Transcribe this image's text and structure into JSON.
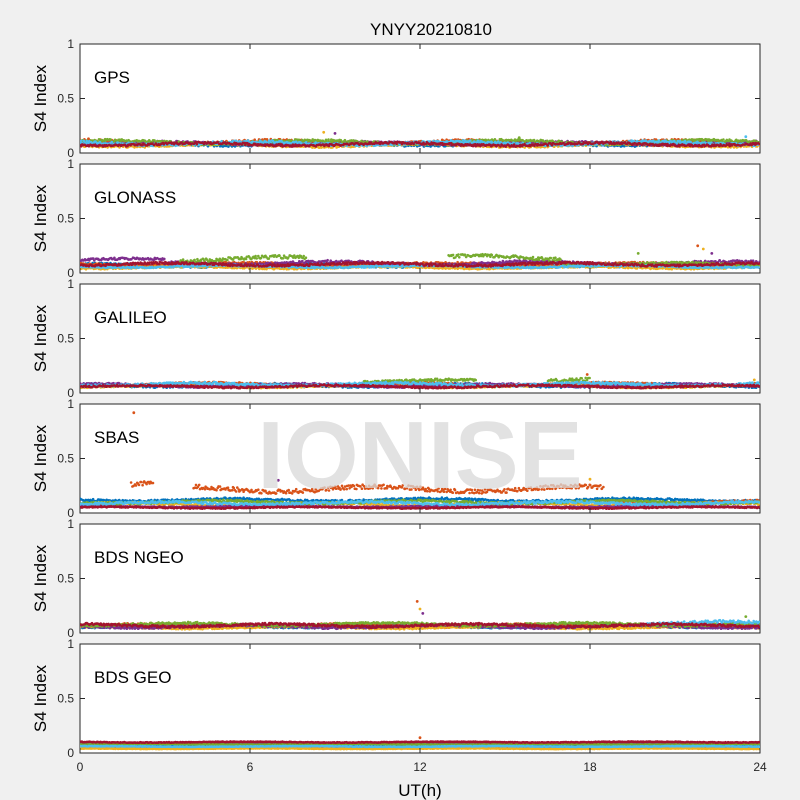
{
  "watermark": "IONISE",
  "colors": {
    "c1": "#0072BD",
    "c2": "#D95319",
    "c3": "#EDB120",
    "c4": "#7E2F8E",
    "c5": "#77AC30",
    "c6": "#4DBEEE",
    "c7": "#A2142F"
  },
  "chart_data": {
    "type": "scatter",
    "title": "YNYY20210810",
    "xlabel": "UT(h)",
    "ylabel": "S4 Index",
    "xlim": [
      0,
      24
    ],
    "ylim": [
      0,
      1
    ],
    "xticks": [
      0,
      6,
      12,
      18,
      24
    ],
    "yticks": [
      0,
      0.5,
      1
    ],
    "ytick_labels": [
      "0",
      "0.5",
      "1"
    ],
    "grid": false,
    "panels": [
      {
        "label": "GPS",
        "series": [
          {
            "color": "c1",
            "segments": [
              [
                0,
                24,
                0.08,
                0.02
              ]
            ]
          },
          {
            "color": "c2",
            "segments": [
              [
                0,
                24,
                0.1,
                0.025
              ]
            ]
          },
          {
            "color": "c3",
            "segments": [
              [
                0,
                24,
                0.07,
                0.02
              ]
            ]
          },
          {
            "color": "c4",
            "segments": [
              [
                0,
                24,
                0.09,
                0.02
              ]
            ]
          },
          {
            "color": "c5",
            "segments": [
              [
                0,
                24,
                0.1,
                0.025
              ]
            ]
          },
          {
            "color": "c6",
            "segments": [
              [
                0,
                24,
                0.09,
                0.025
              ]
            ]
          },
          {
            "color": "c7",
            "segments": [
              [
                0,
                24,
                0.08,
                0.02
              ]
            ]
          }
        ],
        "spikes": [
          [
            0.3,
            0.13
          ],
          [
            8.6,
            0.19
          ],
          [
            9.0,
            0.18
          ],
          [
            15.5,
            0.14
          ],
          [
            23.5,
            0.15
          ]
        ]
      },
      {
        "label": "GLONASS",
        "series": [
          {
            "color": "c1",
            "segments": [
              [
                0,
                24,
                0.07,
                0.02
              ]
            ]
          },
          {
            "color": "c2",
            "segments": [
              [
                0,
                24,
                0.08,
                0.02
              ]
            ]
          },
          {
            "color": "c3",
            "segments": [
              [
                0,
                24,
                0.05,
                0.015
              ]
            ]
          },
          {
            "color": "c4",
            "segments": [
              [
                0,
                3,
                0.12,
                0.02
              ],
              [
                3,
                24,
                0.09,
                0.025
              ]
            ]
          },
          {
            "color": "c5",
            "segments": [
              [
                3.5,
                8,
                0.13,
                0.03
              ],
              [
                13,
                17,
                0.14,
                0.03
              ],
              [
                17,
                24,
                0.08,
                0.02
              ]
            ]
          },
          {
            "color": "c6",
            "segments": [
              [
                0,
                24,
                0.06,
                0.015
              ]
            ]
          },
          {
            "color": "c7",
            "segments": [
              [
                0,
                24,
                0.08,
                0.02
              ]
            ]
          }
        ],
        "spikes": [
          [
            21.8,
            0.25
          ],
          [
            22.0,
            0.22
          ],
          [
            22.3,
            0.18
          ],
          [
            19.7,
            0.18
          ]
        ]
      },
      {
        "label": "GALILEO",
        "series": [
          {
            "color": "c1",
            "segments": [
              [
                0,
                24,
                0.07,
                0.02
              ]
            ]
          },
          {
            "color": "c2",
            "segments": [
              [
                0,
                24,
                0.08,
                0.02
              ]
            ]
          },
          {
            "color": "c3",
            "segments": [
              [
                0,
                24,
                0.06,
                0.015
              ]
            ]
          },
          {
            "color": "c4",
            "segments": [
              [
                0,
                24,
                0.07,
                0.02
              ]
            ]
          },
          {
            "color": "c5",
            "segments": [
              [
                10,
                14,
                0.11,
                0.02
              ],
              [
                16.5,
                18,
                0.13,
                0.03
              ]
            ]
          },
          {
            "color": "c6",
            "segments": [
              [
                0,
                24,
                0.08,
                0.02
              ]
            ]
          },
          {
            "color": "c7",
            "segments": [
              [
                0,
                24,
                0.06,
                0.015
              ]
            ]
          }
        ],
        "spikes": [
          [
            17.9,
            0.17
          ],
          [
            23.8,
            0.12
          ]
        ]
      },
      {
        "label": "SBAS",
        "series": [
          {
            "color": "c1",
            "segments": [
              [
                0,
                24,
                0.12,
                0.02
              ]
            ]
          },
          {
            "color": "c2",
            "segments": [
              [
                1.8,
                2.6,
                0.26,
                0.04
              ],
              [
                4,
                18.5,
                0.22,
                0.04
              ],
              [
                18.5,
                24,
                0.1,
                0.02
              ]
            ]
          },
          {
            "color": "c3",
            "segments": [
              [
                0,
                24,
                0.08,
                0.02
              ]
            ]
          },
          {
            "color": "c4",
            "segments": [
              [
                0,
                24,
                0.06,
                0.01
              ]
            ]
          },
          {
            "color": "c5",
            "segments": [
              [
                0,
                24,
                0.1,
                0.02
              ]
            ]
          },
          {
            "color": "c6",
            "segments": [
              [
                0,
                24,
                0.09,
                0.02
              ]
            ]
          },
          {
            "color": "c7",
            "segments": [
              [
                0,
                24,
                0.05,
                0.01
              ]
            ]
          }
        ],
        "spikes": [
          [
            1.9,
            0.92
          ],
          [
            18.0,
            0.31
          ],
          [
            7.0,
            0.3
          ]
        ]
      },
      {
        "label": "BDS NGEO",
        "series": [
          {
            "color": "c1",
            "segments": [
              [
                0,
                24,
                0.06,
                0.015
              ]
            ]
          },
          {
            "color": "c2",
            "segments": [
              [
                0,
                24,
                0.07,
                0.02
              ]
            ]
          },
          {
            "color": "c3",
            "segments": [
              [
                0,
                24,
                0.05,
                0.015
              ]
            ]
          },
          {
            "color": "c4",
            "segments": [
              [
                0,
                24,
                0.06,
                0.02
              ]
            ]
          },
          {
            "color": "c5",
            "segments": [
              [
                0,
                24,
                0.08,
                0.02
              ]
            ]
          },
          {
            "color": "c6",
            "segments": [
              [
                20,
                24,
                0.09,
                0.025
              ]
            ]
          },
          {
            "color": "c7",
            "segments": [
              [
                0,
                24,
                0.07,
                0.02
              ]
            ]
          }
        ],
        "spikes": [
          [
            11.9,
            0.29
          ],
          [
            12.0,
            0.22
          ],
          [
            12.1,
            0.18
          ],
          [
            23.5,
            0.15
          ]
        ]
      },
      {
        "label": "BDS GEO",
        "series": [
          {
            "color": "c1",
            "segments": [
              [
                0,
                24,
                0.07,
                0.005
              ]
            ]
          },
          {
            "color": "c2",
            "segments": [
              [
                0,
                24,
                0.05,
                0.004
              ]
            ]
          },
          {
            "color": "c3",
            "segments": [
              [
                0,
                24,
                0.04,
                0.004
              ]
            ]
          },
          {
            "color": "c4",
            "segments": [
              [
                0,
                24,
                0.09,
                0.006
              ]
            ]
          },
          {
            "color": "c5",
            "segments": [
              [
                0,
                24,
                0.08,
                0.005
              ]
            ]
          },
          {
            "color": "c6",
            "segments": [
              [
                0,
                24,
                0.06,
                0.005
              ]
            ]
          },
          {
            "color": "c7",
            "segments": [
              [
                0,
                24,
                0.1,
                0.006
              ]
            ]
          }
        ],
        "spikes": [
          [
            12.0,
            0.14
          ]
        ]
      }
    ]
  }
}
